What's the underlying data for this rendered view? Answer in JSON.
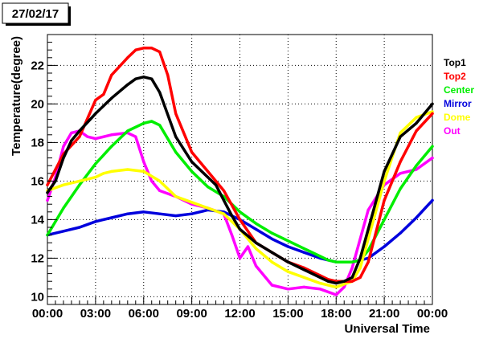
{
  "chart_data": {
    "type": "line",
    "title": "27/02/17",
    "xlabel": "Universal Time",
    "ylabel": "Temperature(degree)",
    "xlim": [
      0,
      24
    ],
    "ylim": [
      9.6,
      23.6
    ],
    "x_ticks": [
      "00:00",
      "03:00",
      "06:00",
      "09:00",
      "12:00",
      "15:00",
      "18:00",
      "21:00",
      "00:00"
    ],
    "y_ticks": [
      "10",
      "12",
      "14",
      "16",
      "18",
      "20",
      "22"
    ],
    "grid": true,
    "legend_position": "right",
    "series": [
      {
        "name": "Top1",
        "color": "#000000",
        "points": [
          [
            0,
            15.4
          ],
          [
            0.5,
            16.0
          ],
          [
            1,
            17.2
          ],
          [
            1.5,
            18.1
          ],
          [
            2,
            18.6
          ],
          [
            3,
            19.5
          ],
          [
            4,
            20.3
          ],
          [
            5,
            21.0
          ],
          [
            5.5,
            21.3
          ],
          [
            6,
            21.4
          ],
          [
            6.5,
            21.3
          ],
          [
            7,
            20.6
          ],
          [
            8,
            18.3
          ],
          [
            9,
            17.0
          ],
          [
            10,
            16.2
          ],
          [
            10.5,
            15.8
          ],
          [
            11,
            15.0
          ],
          [
            11.5,
            14.2
          ],
          [
            12,
            13.5
          ],
          [
            13,
            12.8
          ],
          [
            14,
            12.3
          ],
          [
            15,
            11.8
          ],
          [
            16,
            11.4
          ],
          [
            17,
            11.0
          ],
          [
            17.5,
            10.8
          ],
          [
            18,
            10.7
          ],
          [
            18.5,
            10.8
          ],
          [
            19,
            11.0
          ],
          [
            19.5,
            12.0
          ],
          [
            20,
            13.5
          ],
          [
            21,
            16.5
          ],
          [
            22,
            18.3
          ],
          [
            23,
            19.0
          ],
          [
            24,
            20.0
          ]
        ]
      },
      {
        "name": "Top2",
        "color": "#ff0000",
        "points": [
          [
            0,
            15.8
          ],
          [
            0.5,
            16.6
          ],
          [
            1,
            17.4
          ],
          [
            2,
            18.3
          ],
          [
            3,
            20.2
          ],
          [
            3.5,
            20.5
          ],
          [
            4,
            21.5
          ],
          [
            5,
            22.4
          ],
          [
            5.5,
            22.8
          ],
          [
            6,
            22.9
          ],
          [
            6.5,
            22.9
          ],
          [
            7,
            22.7
          ],
          [
            7.5,
            21.5
          ],
          [
            8,
            19.5
          ],
          [
            9,
            17.5
          ],
          [
            10,
            16.5
          ],
          [
            11,
            15.5
          ],
          [
            12,
            14.0
          ],
          [
            13,
            12.8
          ],
          [
            14,
            12.3
          ],
          [
            15,
            11.8
          ],
          [
            16,
            11.5
          ],
          [
            17,
            11.1
          ],
          [
            17.5,
            10.9
          ],
          [
            18,
            10.8
          ],
          [
            18.5,
            10.8
          ],
          [
            19,
            10.8
          ],
          [
            19.5,
            11.0
          ],
          [
            20,
            11.8
          ],
          [
            21,
            15.0
          ],
          [
            22,
            17.0
          ],
          [
            23,
            18.6
          ],
          [
            24,
            19.5
          ]
        ]
      },
      {
        "name": "Center",
        "color": "#00ee00",
        "points": [
          [
            0,
            13.2
          ],
          [
            1,
            14.6
          ],
          [
            2,
            15.8
          ],
          [
            3,
            16.9
          ],
          [
            4,
            17.8
          ],
          [
            5,
            18.6
          ],
          [
            6,
            19.0
          ],
          [
            6.5,
            19.1
          ],
          [
            7,
            18.9
          ],
          [
            8,
            17.5
          ],
          [
            9,
            16.5
          ],
          [
            10,
            15.7
          ],
          [
            11,
            15.2
          ],
          [
            12,
            14.4
          ],
          [
            13,
            13.8
          ],
          [
            14,
            13.3
          ],
          [
            15,
            12.9
          ],
          [
            16,
            12.5
          ],
          [
            17,
            12.1
          ],
          [
            17.5,
            11.9
          ],
          [
            18,
            11.8
          ],
          [
            18.5,
            11.8
          ],
          [
            19,
            11.8
          ],
          [
            19.5,
            11.9
          ],
          [
            20,
            12.4
          ],
          [
            21,
            14.0
          ],
          [
            22,
            15.6
          ],
          [
            23,
            16.8
          ],
          [
            24,
            17.8
          ]
        ]
      },
      {
        "name": "Mirror",
        "color": "#0000dd",
        "points": [
          [
            0,
            13.2
          ],
          [
            1,
            13.4
          ],
          [
            2,
            13.6
          ],
          [
            3,
            13.9
          ],
          [
            4,
            14.1
          ],
          [
            5,
            14.3
          ],
          [
            6,
            14.4
          ],
          [
            7,
            14.3
          ],
          [
            8,
            14.2
          ],
          [
            9,
            14.3
          ],
          [
            10,
            14.5
          ],
          [
            11,
            14.4
          ],
          [
            12,
            14.0
          ],
          [
            13,
            13.5
          ],
          [
            14,
            13.0
          ],
          [
            15,
            12.6
          ],
          [
            16,
            12.3
          ],
          [
            17,
            12.0
          ],
          [
            18,
            11.8
          ],
          [
            19,
            11.8
          ],
          [
            20,
            12.0
          ],
          [
            21,
            12.6
          ],
          [
            22,
            13.3
          ],
          [
            23,
            14.1
          ],
          [
            24,
            15.0
          ]
        ]
      },
      {
        "name": "Dome",
        "color": "#ffff00",
        "points": [
          [
            0,
            15.5
          ],
          [
            1,
            15.8
          ],
          [
            2,
            16.0
          ],
          [
            3,
            16.2
          ],
          [
            3.5,
            16.4
          ],
          [
            4,
            16.5
          ],
          [
            5,
            16.6
          ],
          [
            6,
            16.5
          ],
          [
            7,
            16.0
          ],
          [
            8,
            15.2
          ],
          [
            9,
            14.9
          ],
          [
            10,
            14.6
          ],
          [
            11,
            14.3
          ],
          [
            12,
            13.5
          ],
          [
            13,
            12.5
          ],
          [
            14,
            11.8
          ],
          [
            15,
            11.3
          ],
          [
            16,
            11.0
          ],
          [
            17,
            10.7
          ],
          [
            18,
            10.5
          ],
          [
            19,
            10.8
          ],
          [
            19.5,
            11.5
          ],
          [
            20,
            13.0
          ],
          [
            21,
            16.0
          ],
          [
            22,
            18.5
          ],
          [
            23,
            19.3
          ],
          [
            24,
            19.6
          ]
        ]
      },
      {
        "name": "Out",
        "color": "#ff00ff",
        "points": [
          [
            0,
            15.0
          ],
          [
            0.5,
            16.2
          ],
          [
            1,
            17.8
          ],
          [
            1.5,
            18.5
          ],
          [
            2,
            18.6
          ],
          [
            2.5,
            18.3
          ],
          [
            3,
            18.2
          ],
          [
            4,
            18.4
          ],
          [
            5,
            18.5
          ],
          [
            5.5,
            18.3
          ],
          [
            6,
            17.0
          ],
          [
            6.5,
            16.0
          ],
          [
            7,
            15.5
          ],
          [
            8,
            15.2
          ],
          [
            9,
            14.8
          ],
          [
            10,
            14.6
          ],
          [
            11,
            14.3
          ],
          [
            11.5,
            13.2
          ],
          [
            12,
            12.0
          ],
          [
            12.5,
            12.6
          ],
          [
            13,
            11.6
          ],
          [
            14,
            10.6
          ],
          [
            15,
            10.4
          ],
          [
            16,
            10.5
          ],
          [
            17,
            10.4
          ],
          [
            18,
            10.1
          ],
          [
            18.5,
            10.5
          ],
          [
            19,
            11.5
          ],
          [
            19.5,
            13.0
          ],
          [
            20,
            14.5
          ],
          [
            21,
            15.8
          ],
          [
            22,
            16.4
          ],
          [
            23,
            16.6
          ],
          [
            24,
            17.2
          ]
        ]
      }
    ]
  }
}
